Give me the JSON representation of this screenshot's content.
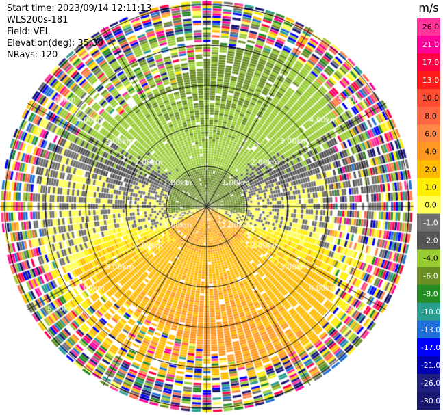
{
  "header": {
    "start_time_label": "Start time: 2023/09/14 12:11:13",
    "instrument": "WLS200s-181",
    "field_label": "Field: VEL",
    "elevation_label": "Elevation(deg): 35.30",
    "nrays_label": "NRays: 120"
  },
  "chart_data": {
    "type": "heatmap",
    "projection": "polar-ppi",
    "field": "VEL",
    "units": "m/s",
    "elevation_deg": 35.3,
    "n_rays": 120,
    "range_rings_km": [
      1.0,
      2.0,
      3.0,
      4.0,
      5.0
    ],
    "range_ring_labels": [
      "1.00km",
      "2.00km",
      "3.00km",
      "4.00km",
      "5.00km"
    ],
    "spokes_deg": [
      0,
      30,
      60,
      90,
      120,
      150,
      180,
      210,
      240,
      270,
      300,
      330
    ],
    "max_range_km": 6.0,
    "colorbar": {
      "label": "m/s",
      "tick_labels": [
        "26.0",
        "21.0",
        "17.0",
        "13.0",
        "10.0",
        "8.0",
        "6.0",
        "4.0",
        "2.0",
        "1.0",
        "0.0",
        "-1.0",
        "-2.0",
        "-4.0",
        "-6.0",
        "-8.0",
        "-10.0",
        "-13.0",
        "-17.0",
        "-21.0",
        "-26.0",
        "-30.0"
      ],
      "colors": [
        "#ff3399",
        "#ff0099",
        "#ff0044",
        "#ff1a1a",
        "#ff4d33",
        "#ff6644",
        "#ff8844",
        "#ff9922",
        "#ffbb00",
        "#ffee00",
        "#ffff55",
        "#707070",
        "#555555",
        "#99cc33",
        "#6b8e23",
        "#228b22",
        "#2a9d8f",
        "#1e6fd9",
        "#0000ff",
        "#0000b0",
        "#202080",
        "#181870"
      ]
    },
    "velocity_pattern": {
      "north_half": "negative (greens, -1 to -6 m/s)",
      "south_half": "positive (yellows/oranges, 1 to 6 m/s)",
      "outer_rings": "noisy mixed colors beyond ~4 km"
    }
  }
}
